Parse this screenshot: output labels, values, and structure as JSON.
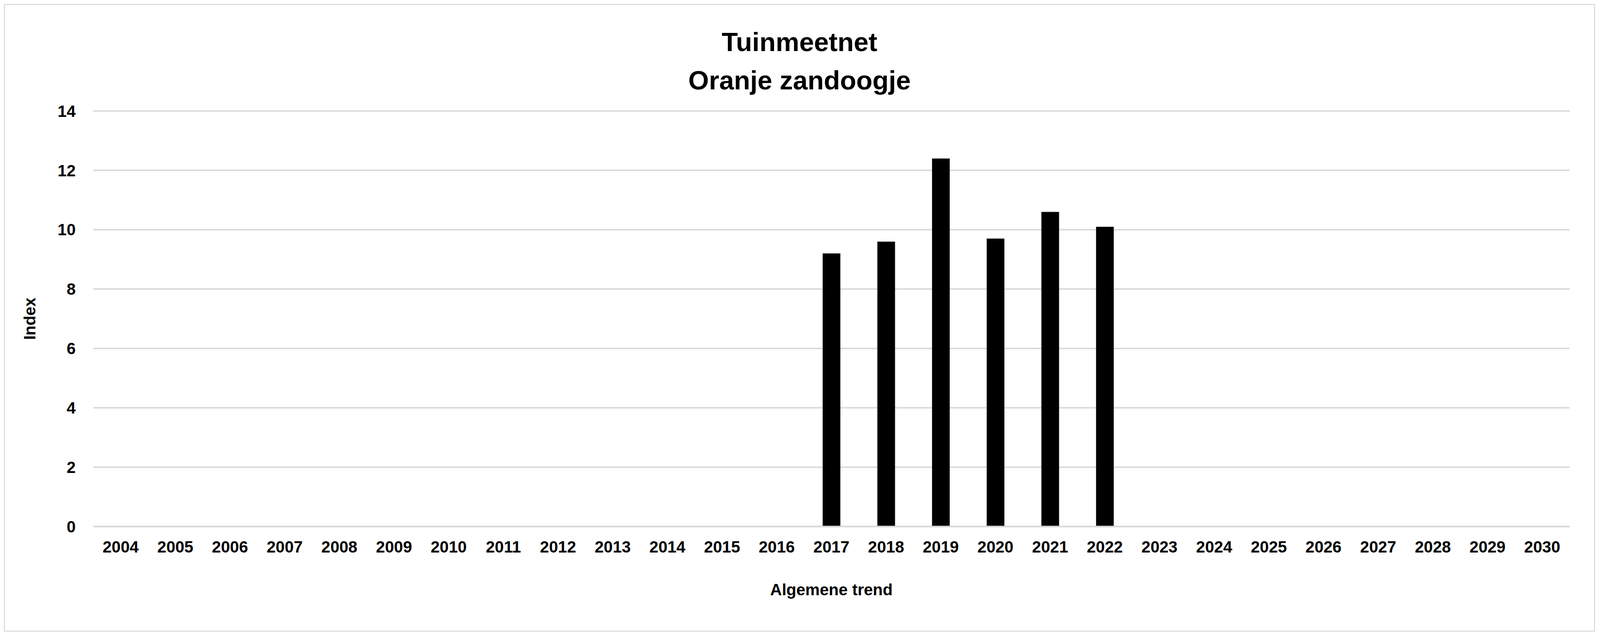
{
  "chart_data": {
    "type": "bar",
    "title": "Tuinmeetnet",
    "subtitle": "Oranje zandoogje",
    "x_label": "Algemene trend",
    "y_label": "Index",
    "categories": [
      "2004",
      "2005",
      "2006",
      "2007",
      "2008",
      "2009",
      "2010",
      "2011",
      "2012",
      "2013",
      "2014",
      "2015",
      "2016",
      "2017",
      "2018",
      "2019",
      "2020",
      "2021",
      "2022",
      "2023",
      "2024",
      "2025",
      "2026",
      "2027",
      "2028",
      "2029",
      "2030"
    ],
    "values": [
      null,
      null,
      null,
      null,
      null,
      null,
      null,
      null,
      null,
      null,
      null,
      null,
      null,
      9.2,
      9.6,
      12.4,
      9.7,
      10.6,
      10.1,
      null,
      null,
      null,
      null,
      null,
      null,
      null,
      null
    ],
    "color": "#000000",
    "ylim": [
      0,
      14
    ],
    "yticks": [
      0,
      2,
      4,
      6,
      8,
      10,
      12,
      14
    ],
    "grid": true
  }
}
